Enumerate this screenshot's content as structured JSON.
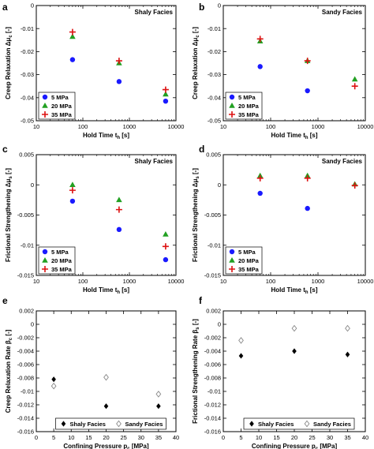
{
  "chart_data": [
    {
      "panel": "a",
      "type": "scatter",
      "title": "Shaly Facies",
      "xlabel": "Hold Time t",
      "xlabel_sub": "h",
      "xlabel_unit": " [s]",
      "ylabel": "Creep Relaxation Δμ",
      "ylabel_sub": "c",
      "ylabel_unit": " [-]",
      "xscale": "log",
      "xlim": [
        10,
        10000
      ],
      "ylim": [
        -0.05,
        0
      ],
      "xticks": [
        10,
        100,
        1000,
        10000
      ],
      "xtick_labels": [
        "10",
        "100",
        "1000",
        "10000"
      ],
      "yticks": [
        0,
        -0.01,
        -0.02,
        -0.03,
        -0.04,
        -0.05
      ],
      "ytick_labels": [
        "0",
        "-0.01",
        "-0.02",
        "-0.03",
        "-0.04",
        "-0.05"
      ],
      "legend": "bottom-left",
      "series": [
        {
          "name": "5 MPa",
          "marker": "circle",
          "color": "#1a1aff",
          "x": [
            60,
            600,
            6000
          ],
          "y": [
            -0.0235,
            -0.033,
            -0.0415
          ]
        },
        {
          "name": "20 MPa",
          "marker": "triangle",
          "color": "#22a022",
          "x": [
            60,
            600,
            6000
          ],
          "y": [
            -0.0135,
            -0.025,
            -0.0385
          ]
        },
        {
          "name": "35 MPa",
          "marker": "plus",
          "color": "#dd1111",
          "x": [
            60,
            600,
            6000
          ],
          "y": [
            -0.0115,
            -0.024,
            -0.0365
          ]
        }
      ]
    },
    {
      "panel": "b",
      "type": "scatter",
      "title": "Sandy Facies",
      "xlabel": "Hold Time t",
      "xlabel_sub": "h",
      "xlabel_unit": " [s]",
      "ylabel": "Creep Relaxation Δμ",
      "ylabel_sub": "c",
      "ylabel_unit": " [-]",
      "xscale": "log",
      "xlim": [
        10,
        10000
      ],
      "ylim": [
        -0.05,
        0
      ],
      "xticks": [
        10,
        100,
        1000,
        10000
      ],
      "xtick_labels": [
        "10",
        "100",
        "1000",
        "10000"
      ],
      "yticks": [
        0,
        -0.01,
        -0.02,
        -0.03,
        -0.04,
        -0.05
      ],
      "ytick_labels": [
        "0",
        "-0.01",
        "-0.02",
        "-0.03",
        "-0.04",
        "-0.05"
      ],
      "legend": "bottom-left",
      "series": [
        {
          "name": "5 MPa",
          "marker": "circle",
          "color": "#1a1aff",
          "x": [
            60,
            600
          ],
          "y": [
            -0.0265,
            -0.037
          ]
        },
        {
          "name": "20 MPa",
          "marker": "triangle",
          "color": "#22a022",
          "x": [
            60,
            600,
            6000
          ],
          "y": [
            -0.0155,
            -0.024,
            -0.032
          ]
        },
        {
          "name": "35 MPa",
          "marker": "plus",
          "color": "#dd1111",
          "x": [
            60,
            600,
            6000
          ],
          "y": [
            -0.0145,
            -0.024,
            -0.035
          ]
        }
      ]
    },
    {
      "panel": "c",
      "type": "scatter",
      "title": "Shaly Facies",
      "xlabel": "Hold Time t",
      "xlabel_sub": "h",
      "xlabel_unit": " [s]",
      "ylabel": "Frictional Strengthening Δμ",
      "ylabel_sub": "s",
      "ylabel_unit": " [-]",
      "xscale": "log",
      "xlim": [
        10,
        10000
      ],
      "ylim": [
        -0.015,
        0.005
      ],
      "xticks": [
        10,
        100,
        1000,
        10000
      ],
      "xtick_labels": [
        "10",
        "100",
        "1000",
        "10000"
      ],
      "yticks": [
        0.005,
        0,
        -0.005,
        -0.01,
        -0.015
      ],
      "ytick_labels": [
        "0.005",
        "0",
        "-0.005",
        "-0.01",
        "-0.015"
      ],
      "legend": "bottom-left",
      "series": [
        {
          "name": "5 MPa",
          "marker": "circle",
          "color": "#1a1aff",
          "x": [
            60,
            600,
            6000
          ],
          "y": [
            -0.0027,
            -0.0074,
            -0.0124
          ]
        },
        {
          "name": "20 MPa",
          "marker": "triangle",
          "color": "#22a022",
          "x": [
            60,
            600,
            6000
          ],
          "y": [
            0.0,
            -0.0025,
            -0.0082
          ]
        },
        {
          "name": "35 MPa",
          "marker": "plus",
          "color": "#dd1111",
          "x": [
            60,
            600,
            6000
          ],
          "y": [
            -0.0009,
            -0.0041,
            -0.0102
          ]
        }
      ]
    },
    {
      "panel": "d",
      "type": "scatter",
      "title": "Sandy Facies",
      "xlabel": "Hold Time t",
      "xlabel_sub": "h",
      "xlabel_unit": " [s]",
      "ylabel": "Frictional Strengthening Δμ",
      "ylabel_sub": "s",
      "ylabel_unit": " [-]",
      "xscale": "log",
      "xlim": [
        10,
        10000
      ],
      "ylim": [
        -0.015,
        0.005
      ],
      "xticks": [
        10,
        100,
        1000,
        10000
      ],
      "xtick_labels": [
        "10",
        "100",
        "1000",
        "10000"
      ],
      "yticks": [
        0.005,
        0,
        -0.005,
        -0.01,
        -0.015
      ],
      "ytick_labels": [
        "0.005",
        "0",
        "-0.005",
        "-0.01",
        "-0.015"
      ],
      "legend": "bottom-left",
      "series": [
        {
          "name": "5 MPa",
          "marker": "circle",
          "color": "#1a1aff",
          "x": [
            60,
            600
          ],
          "y": [
            -0.0014,
            -0.0039
          ]
        },
        {
          "name": "20 MPa",
          "marker": "triangle",
          "color": "#22a022",
          "x": [
            60,
            600,
            6000
          ],
          "y": [
            0.0015,
            0.0015,
            0.0001
          ]
        },
        {
          "name": "35 MPa",
          "marker": "plus",
          "color": "#dd1111",
          "x": [
            60,
            600,
            6000
          ],
          "y": [
            0.0011,
            0.0011,
            -0.0001
          ]
        }
      ]
    },
    {
      "panel": "e",
      "type": "scatter",
      "title": "",
      "xlabel": "Confining Pressure p",
      "xlabel_sub": "c",
      "xlabel_unit": " [MPa]",
      "ylabel": "Creep Relaxation Rate β",
      "ylabel_sub": "c",
      "ylabel_unit": " [-]",
      "xscale": "linear",
      "xlim": [
        0,
        40
      ],
      "ylim": [
        -0.016,
        0.002
      ],
      "xticks": [
        0,
        5,
        10,
        15,
        20,
        25,
        30,
        35,
        40
      ],
      "xtick_labels": [
        "0",
        "5",
        "10",
        "15",
        "20",
        "25",
        "30",
        "35",
        "40"
      ],
      "yticks": [
        0.002,
        0,
        -0.002,
        -0.004,
        -0.006,
        -0.008,
        -0.01,
        -0.012,
        -0.014,
        -0.016
      ],
      "ytick_labels": [
        "0.002",
        "0",
        "-0.002",
        "-0.004",
        "-0.006",
        "-0.008",
        "-0.01",
        "-0.012",
        "-0.014",
        "-0.016"
      ],
      "legend": "bottom-center",
      "series": [
        {
          "name": "Shaly Facies",
          "marker": "diamond-filled",
          "color": "#000000",
          "x": [
            5,
            20,
            35
          ],
          "y": [
            -0.0082,
            -0.0122,
            -0.0122
          ]
        },
        {
          "name": "Sandy Facies",
          "marker": "diamond-open",
          "color": "#888888",
          "x": [
            5,
            20,
            35
          ],
          "y": [
            -0.0092,
            -0.0079,
            -0.0104
          ]
        }
      ]
    },
    {
      "panel": "f",
      "type": "scatter",
      "title": "",
      "xlabel": "Confining Pressure p",
      "xlabel_sub": "c",
      "xlabel_unit": " [MPa]",
      "ylabel": "Frictional Strengthening Rate β",
      "ylabel_sub": "s",
      "ylabel_unit": " [-]",
      "xscale": "linear",
      "xlim": [
        0,
        40
      ],
      "ylim": [
        -0.016,
        0.002
      ],
      "xticks": [
        0,
        5,
        10,
        15,
        20,
        25,
        30,
        35,
        40
      ],
      "xtick_labels": [
        "0",
        "5",
        "10",
        "15",
        "20",
        "25",
        "30",
        "35",
        "40"
      ],
      "yticks": [
        0.002,
        0,
        -0.002,
        -0.004,
        -0.006,
        -0.008,
        -0.01,
        -0.012,
        -0.014,
        -0.016
      ],
      "ytick_labels": [
        "0.002",
        "0",
        "-0.002",
        "-0.004",
        "-0.006",
        "-0.008",
        "-0.01",
        "-0.012",
        "-0.014",
        "-0.016"
      ],
      "legend": "bottom-center",
      "series": [
        {
          "name": "Shaly Facies",
          "marker": "diamond-filled",
          "color": "#000000",
          "x": [
            5,
            20,
            35
          ],
          "y": [
            -0.0047,
            -0.004,
            -0.0045
          ]
        },
        {
          "name": "Sandy Facies",
          "marker": "diamond-open",
          "color": "#888888",
          "x": [
            5,
            20,
            35
          ],
          "y": [
            -0.0024,
            -0.0006,
            -0.0006
          ]
        }
      ]
    }
  ]
}
